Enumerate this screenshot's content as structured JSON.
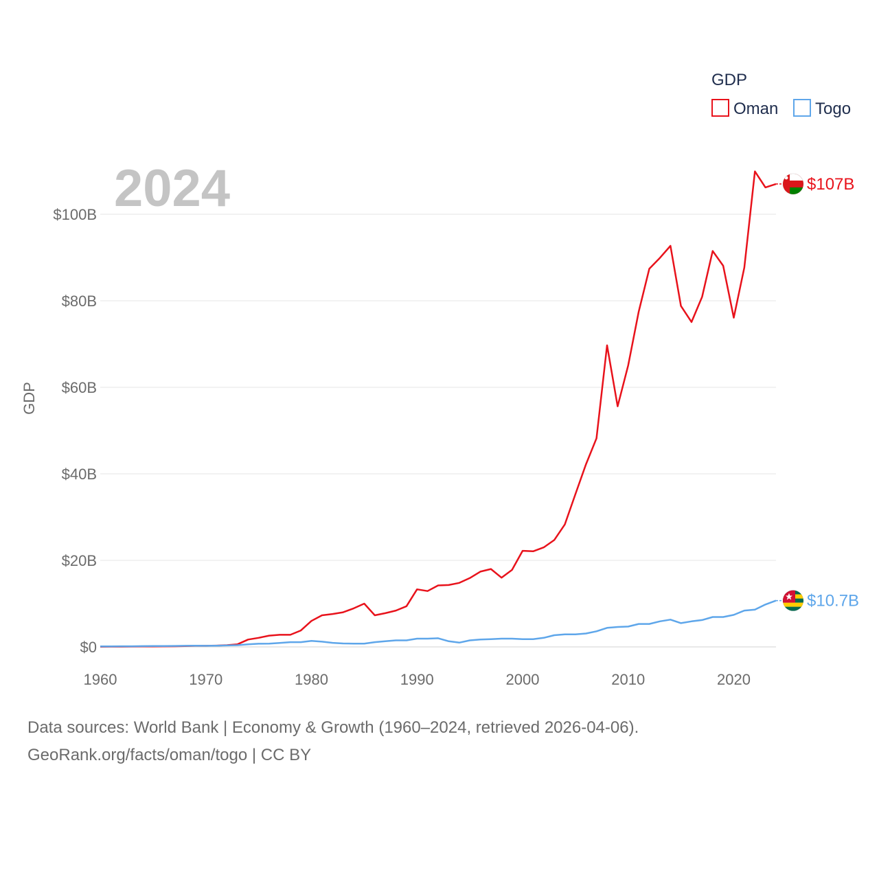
{
  "chart_data": {
    "type": "line",
    "year_label": "2024",
    "legend_title": "GDP",
    "ylabel": "GDP",
    "xlim": [
      1960,
      2024
    ],
    "ylim": [
      0,
      110
    ],
    "x_ticks": [
      1960,
      1970,
      1980,
      1990,
      2000,
      2010,
      2020
    ],
    "x_tick_labels": [
      "1960",
      "1970",
      "1980",
      "1990",
      "2000",
      "2010",
      "2020"
    ],
    "y_ticks": [
      0,
      20,
      40,
      60,
      80,
      100
    ],
    "y_tick_labels": [
      "$0",
      "$20B",
      "$40B",
      "$60B",
      "$80B",
      "$100B"
    ],
    "units": "billions USD",
    "x": [
      1960,
      1961,
      1962,
      1963,
      1964,
      1965,
      1966,
      1967,
      1968,
      1969,
      1970,
      1971,
      1972,
      1973,
      1974,
      1975,
      1976,
      1977,
      1978,
      1979,
      1980,
      1981,
      1982,
      1983,
      1984,
      1985,
      1986,
      1987,
      1988,
      1989,
      1990,
      1991,
      1992,
      1993,
      1994,
      1995,
      1996,
      1997,
      1998,
      1999,
      2000,
      2001,
      2002,
      2003,
      2004,
      2005,
      2006,
      2007,
      2008,
      2009,
      2010,
      2011,
      2012,
      2013,
      2014,
      2015,
      2016,
      2017,
      2018,
      2019,
      2020,
      2021,
      2022,
      2023,
      2024
    ],
    "series": [
      {
        "name": "Oman",
        "color": "#e8121b",
        "end_label": "$107B",
        "flag": "oman-flag-icon",
        "values": [
          0.05,
          0.06,
          0.07,
          0.08,
          0.09,
          0.1,
          0.12,
          0.15,
          0.2,
          0.25,
          0.26,
          0.3,
          0.4,
          0.6,
          1.7,
          2.1,
          2.6,
          2.8,
          2.8,
          3.8,
          6.0,
          7.3,
          7.6,
          8.0,
          8.9,
          10.0,
          7.3,
          7.8,
          8.4,
          9.4,
          13.3,
          12.9,
          14.2,
          14.3,
          14.8,
          15.9,
          17.4,
          18.0,
          16.0,
          17.8,
          22.2,
          22.1,
          23.0,
          24.7,
          28.3,
          35.3,
          42.2,
          48.2,
          69.7,
          55.6,
          65.1,
          77.5,
          87.4,
          89.9,
          92.7,
          78.8,
          75.1,
          80.9,
          91.5,
          88.1,
          76.1,
          87.7,
          109.9,
          106.2,
          107.0
        ]
      },
      {
        "name": "Togo",
        "color": "#5ea6ea",
        "end_label": "$10.7B",
        "flag": "togo-flag-icon",
        "values": [
          0.12,
          0.13,
          0.14,
          0.15,
          0.17,
          0.19,
          0.21,
          0.23,
          0.25,
          0.27,
          0.25,
          0.28,
          0.33,
          0.4,
          0.6,
          0.73,
          0.75,
          0.91,
          1.1,
          1.1,
          1.4,
          1.2,
          0.94,
          0.8,
          0.75,
          0.76,
          1.1,
          1.3,
          1.5,
          1.5,
          1.9,
          1.9,
          2.0,
          1.3,
          0.98,
          1.5,
          1.7,
          1.8,
          1.9,
          1.9,
          1.8,
          1.8,
          2.1,
          2.7,
          2.9,
          2.9,
          3.1,
          3.6,
          4.4,
          4.6,
          4.7,
          5.3,
          5.3,
          5.9,
          6.3,
          5.5,
          5.9,
          6.2,
          6.9,
          6.9,
          7.4,
          8.4,
          8.6,
          9.8,
          10.7
        ]
      }
    ],
    "source_line_1": "Data sources: World Bank | Economy & Growth (1960–2024, retrieved 2026-04-06).",
    "source_line_2": "GeoRank.org/facts/oman/togo | CC BY"
  }
}
